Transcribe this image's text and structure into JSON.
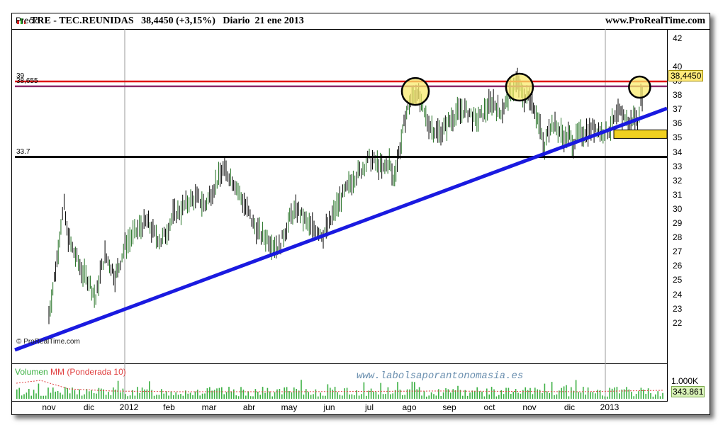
{
  "header": {
    "title": "TRE - TEC.REUNIDAS   38,4450 (+3,15%)   Diario  21 ene 2013",
    "brand": "www.ProRealTime.com"
  },
  "panel": {
    "price_label": "Precio",
    "copyright": "© ProRealTime.com",
    "volume_label_main": "Volumen ",
    "volume_label_mm": "MM (Ponderada 10)",
    "watermark": "www.labolsaporantonomasia.es",
    "last_price_label": "38,4450"
  },
  "chart_data": {
    "type": "line",
    "title": "TRE - TEC.REUNIDAS",
    "timeframe": "Diario",
    "date": "21 ene 2013",
    "last": 38.445,
    "change_pct": "+3,15%",
    "x_ticks": [
      "nov",
      "dic",
      "2012",
      "feb",
      "mar",
      "abr",
      "may",
      "jun",
      "jul",
      "ago",
      "sep",
      "oct",
      "nov",
      "dic",
      "2013"
    ],
    "ylim": [
      22,
      42
    ],
    "y_ticks": [
      "42",
      "40",
      "39",
      "38",
      "37",
      "36",
      "35",
      "34",
      "33",
      "32",
      "31",
      "30",
      "29",
      "28",
      "27",
      "26",
      "25",
      "24",
      "23",
      "22"
    ],
    "y_tick_values": [
      42,
      40,
      39,
      38,
      37,
      36,
      35,
      34,
      33,
      32,
      31,
      30,
      29,
      28,
      27,
      26,
      25,
      24,
      23,
      22
    ],
    "price_series": {
      "name": "Precio",
      "points": [
        [
          0,
          22.6
        ],
        [
          0.1,
          24.5
        ],
        [
          0.2,
          26.5
        ],
        [
          0.3,
          29
        ],
        [
          0.38,
          30.2
        ],
        [
          0.45,
          28.5
        ],
        [
          0.55,
          27.5
        ],
        [
          0.7,
          26.5
        ],
        [
          0.85,
          25.5
        ],
        [
          1.0,
          25.0
        ],
        [
          1.1,
          24.2
        ],
        [
          1.17,
          23.7
        ],
        [
          1.28,
          25.5
        ],
        [
          1.4,
          26.8
        ],
        [
          1.55,
          26.0
        ],
        [
          1.65,
          25.3
        ],
        [
          1.75,
          26.0
        ],
        [
          1.9,
          27.5
        ],
        [
          2.1,
          28.2
        ],
        [
          2.3,
          28.8
        ],
        [
          2.45,
          29.2
        ],
        [
          2.6,
          28.4
        ],
        [
          2.8,
          27.8
        ],
        [
          2.95,
          28.5
        ],
        [
          3.1,
          29.6
        ],
        [
          3.3,
          30.0
        ],
        [
          3.5,
          30.6
        ],
        [
          3.7,
          30.8
        ],
        [
          3.9,
          30.3
        ],
        [
          4.05,
          31.2
        ],
        [
          4.2,
          32.0
        ],
        [
          4.35,
          32.8
        ],
        [
          4.5,
          32.4
        ],
        [
          4.65,
          31.8
        ],
        [
          4.8,
          30.8
        ],
        [
          4.95,
          30.0
        ],
        [
          5.1,
          29.0
        ],
        [
          5.3,
          28.2
        ],
        [
          5.45,
          28.0
        ],
        [
          5.6,
          27.6
        ],
        [
          5.75,
          27.3
        ],
        [
          5.9,
          28.5
        ],
        [
          6.05,
          29.6
        ],
        [
          6.2,
          30.0
        ],
        [
          6.35,
          29.4
        ],
        [
          6.5,
          28.8
        ],
        [
          6.7,
          28.6
        ],
        [
          6.85,
          28.2
        ],
        [
          7.0,
          29.0
        ],
        [
          7.15,
          30.0
        ],
        [
          7.3,
          30.8
        ],
        [
          7.45,
          31.5
        ],
        [
          7.6,
          32.2
        ],
        [
          7.8,
          32.8
        ],
        [
          8.0,
          33.6
        ],
        [
          8.2,
          33.2
        ],
        [
          8.35,
          32.8
        ],
        [
          8.5,
          33.4
        ],
        [
          8.6,
          32.0
        ],
        [
          8.7,
          33.5
        ],
        [
          8.8,
          34.8
        ],
        [
          8.9,
          36.5
        ],
        [
          9.0,
          37.5
        ],
        [
          9.1,
          38.0
        ],
        [
          9.2,
          38.4
        ],
        [
          9.3,
          37.2
        ],
        [
          9.45,
          36.2
        ],
        [
          9.6,
          35.6
        ],
        [
          9.75,
          35.4
        ],
        [
          9.9,
          35.8
        ],
        [
          10.05,
          36.4
        ],
        [
          10.2,
          36.8
        ],
        [
          10.35,
          37.0
        ],
        [
          10.5,
          36.8
        ],
        [
          10.65,
          36.2
        ],
        [
          10.8,
          36.6
        ],
        [
          10.95,
          37.2
        ],
        [
          11.1,
          37.6
        ],
        [
          11.25,
          36.8
        ],
        [
          11.4,
          37.4
        ],
        [
          11.5,
          38.0
        ],
        [
          11.6,
          38.6
        ],
        [
          11.7,
          39.0
        ],
        [
          11.8,
          38.2
        ],
        [
          11.9,
          37.8
        ],
        [
          12.0,
          38.0
        ],
        [
          12.1,
          37.4
        ],
        [
          12.2,
          36.4
        ],
        [
          12.3,
          35.2
        ],
        [
          12.38,
          34.0
        ],
        [
          12.45,
          35.8
        ],
        [
          12.6,
          36.0
        ],
        [
          12.75,
          35.5
        ],
        [
          12.9,
          35.0
        ],
        [
          13.0,
          35.2
        ],
        [
          13.1,
          34.6
        ],
        [
          13.2,
          35.2
        ],
        [
          13.35,
          35.4
        ],
        [
          13.5,
          35.6
        ],
        [
          13.65,
          35.8
        ],
        [
          13.8,
          35.4
        ],
        [
          13.95,
          35.5
        ],
        [
          14.1,
          36.2
        ],
        [
          14.25,
          36.8
        ],
        [
          14.35,
          36.6
        ],
        [
          14.5,
          36.0
        ],
        [
          14.6,
          36.5
        ],
        [
          14.7,
          36.2
        ],
        [
          14.78,
          37.8
        ],
        [
          14.85,
          38.445
        ]
      ]
    },
    "levels": [
      {
        "label": "39",
        "value": 39.0,
        "color": "#e01010"
      },
      {
        "label": "38,655",
        "value": 38.655,
        "color": "#8a2a6a"
      },
      {
        "label": "33.7",
        "value": 33.7,
        "color": "#000000"
      }
    ],
    "trendline": {
      "from": [
        0,
        22.6
      ],
      "to": [
        14.95,
        36.0
      ],
      "color": "#1a1ae0"
    },
    "support_zone": {
      "x_from": 14.0,
      "x_to": 14.95,
      "y_from": 35.0,
      "y_to": 35.6,
      "color": "#f0d020"
    },
    "highlight_circles": [
      {
        "x": 9.15,
        "y": 38.3
      },
      {
        "x": 11.75,
        "y": 38.6
      },
      {
        "x": 14.75,
        "y": 38.6
      }
    ],
    "volume": {
      "label": "Volumen MM (Ponderada 10)",
      "y_ticks": [
        "1.000K",
        "343.861"
      ],
      "ylim": [
        0,
        1300
      ],
      "last_volume": 343.861,
      "ma_color": "#e04040",
      "bar_color": "#3cb043"
    }
  }
}
